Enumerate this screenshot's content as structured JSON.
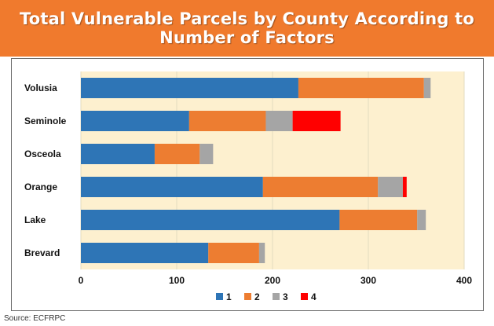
{
  "title": {
    "line1": "Total Vulnerable Parcels by County According to",
    "line2": "Number of Factors"
  },
  "source": "Source: ECFRPC",
  "colors": {
    "banner": "#f07a2d",
    "plot_bg": "#fdf0cf",
    "grid": "#e3dbbf"
  },
  "chart_data": {
    "type": "bar",
    "orientation": "horizontal",
    "stacked": true,
    "title": "Total Vulnerable Parcels by County According to Number of Factors",
    "categories": [
      "Volusia",
      "Seminole",
      "Osceola",
      "Orange",
      "Lake",
      "Brevard"
    ],
    "series": [
      {
        "name": "1",
        "color": "#2e75b6",
        "values": [
          227,
          113,
          77,
          190,
          270,
          133
        ]
      },
      {
        "name": "2",
        "color": "#ed7d31",
        "values": [
          131,
          80,
          47,
          120,
          81,
          53
        ]
      },
      {
        "name": "3",
        "color": "#a5a5a5",
        "values": [
          7,
          28,
          14,
          26,
          9,
          6
        ]
      },
      {
        "name": "4",
        "color": "#ff0000",
        "values": [
          0,
          50,
          0,
          4,
          0,
          0
        ]
      }
    ],
    "xlim": [
      0,
      400
    ],
    "xticks": [
      "0",
      "100",
      "200",
      "300",
      "400"
    ],
    "xtick_values": [
      0,
      100,
      200,
      300,
      400
    ],
    "xlabel": "",
    "ylabel": "",
    "grid": true,
    "legend": "bottom"
  }
}
